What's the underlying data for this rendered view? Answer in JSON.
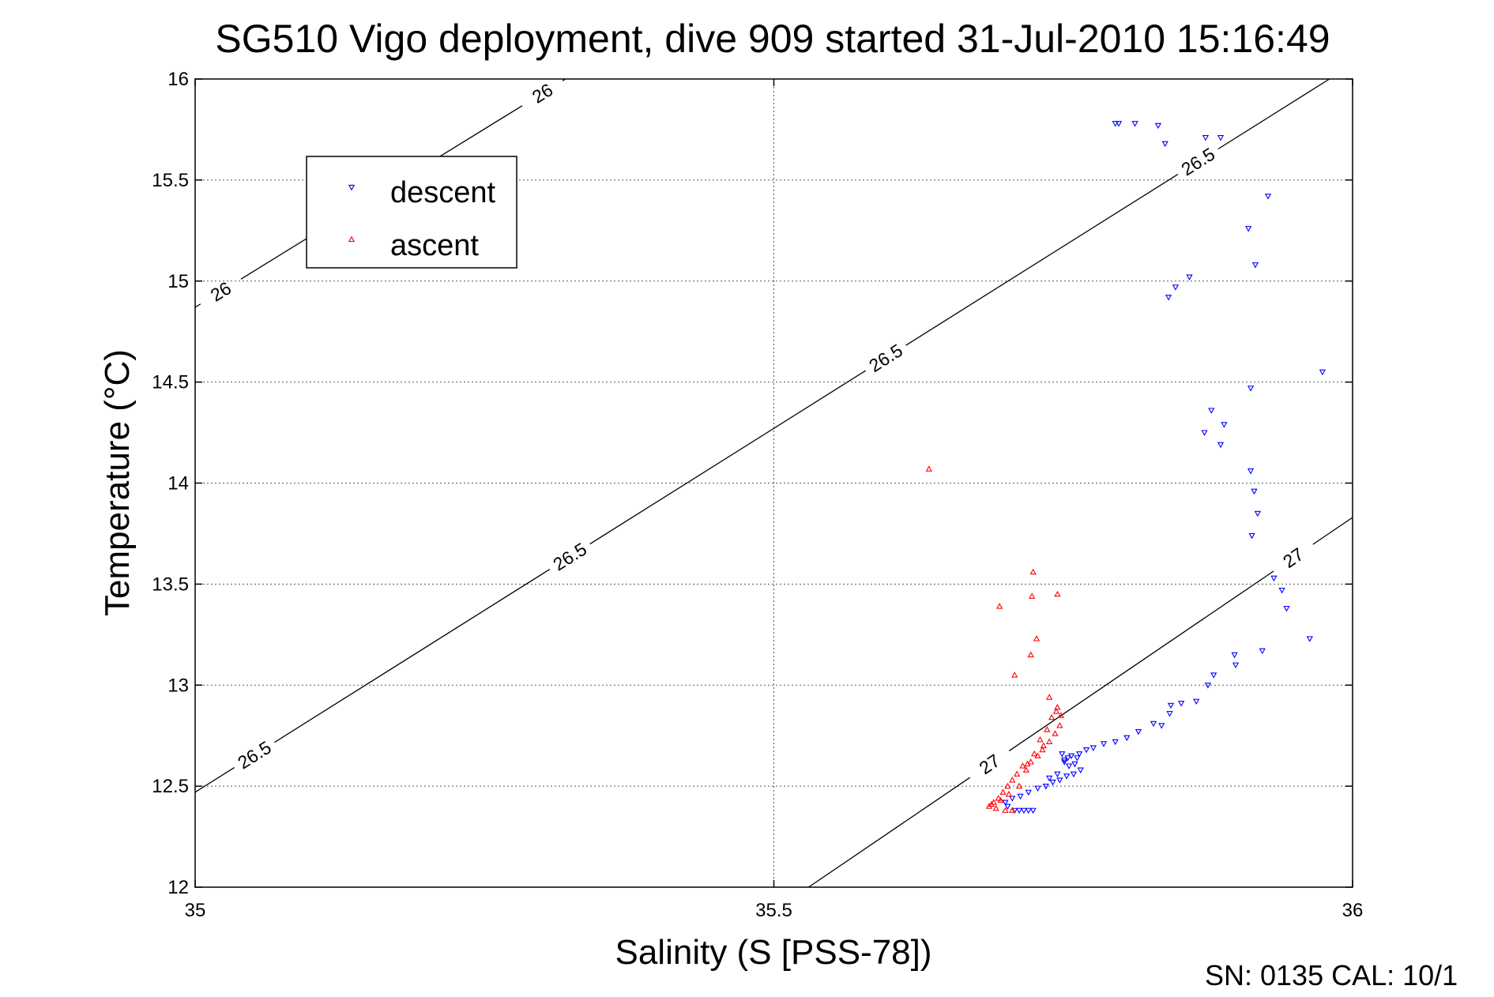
{
  "chart_data": {
    "type": "scatter",
    "title": "SG510 Vigo deployment, dive 909 started 31-Jul-2010 15:16:49",
    "xlabel": "Salinity (S [PSS-78])",
    "ylabel": "Temperature (°C)",
    "xlim": [
      35,
      36
    ],
    "ylim": [
      12,
      16
    ],
    "xticks": [
      "35",
      "35.5",
      "36"
    ],
    "yticks": [
      "12",
      "12.5",
      "13",
      "13.5",
      "14",
      "14.5",
      "15",
      "15.5",
      "16"
    ],
    "grid": true,
    "legend_position": "top-left",
    "footer_text": "SN: 0135  CAL: 10/1",
    "colors": {
      "descent": "#0000ff",
      "ascent": "#ff0000",
      "contour": "#000000"
    },
    "contours": [
      {
        "label": "26",
        "points": [
          [
            35.0,
            14.87
          ],
          [
            35.32,
            16.0
          ]
        ],
        "label_positions": [
          [
            35.023,
            14.94
          ],
          [
            35.3,
            15.93
          ]
        ]
      },
      {
        "label": "26.5",
        "points": [
          [
            35.0,
            12.47
          ],
          [
            35.98,
            16.0
          ]
        ],
        "label_positions": [
          [
            35.055,
            12.62
          ],
          [
            35.32,
            13.67
          ],
          [
            35.59,
            14.68
          ],
          [
            35.86,
            15.65
          ]
        ]
      },
      {
        "label": "27",
        "points": [
          [
            35.53,
            12.0
          ],
          [
            36.0,
            13.83
          ]
        ],
        "label_positions": [
          [
            35.685,
            12.62
          ],
          [
            35.95,
            13.62
          ]
        ]
      }
    ],
    "series": [
      {
        "name": "descent",
        "marker": "triangle-down",
        "points": [
          [
            35.795,
            15.78
          ],
          [
            35.798,
            15.78
          ],
          [
            35.812,
            15.78
          ],
          [
            35.832,
            15.77
          ],
          [
            35.838,
            15.68
          ],
          [
            35.873,
            15.71
          ],
          [
            35.886,
            15.71
          ],
          [
            35.927,
            15.42
          ],
          [
            35.91,
            15.26
          ],
          [
            35.916,
            15.08
          ],
          [
            35.859,
            15.02
          ],
          [
            35.847,
            14.97
          ],
          [
            35.841,
            14.92
          ],
          [
            35.974,
            14.55
          ],
          [
            35.912,
            14.47
          ],
          [
            35.878,
            14.36
          ],
          [
            35.889,
            14.29
          ],
          [
            35.872,
            14.25
          ],
          [
            35.886,
            14.19
          ],
          [
            35.912,
            14.06
          ],
          [
            35.918,
            13.85
          ],
          [
            35.915,
            13.96
          ],
          [
            35.913,
            13.74
          ],
          [
            35.932,
            13.53
          ],
          [
            35.943,
            13.38
          ],
          [
            35.939,
            13.47
          ],
          [
            35.963,
            13.23
          ],
          [
            35.922,
            13.17
          ],
          [
            35.898,
            13.15
          ],
          [
            35.899,
            13.1
          ],
          [
            35.88,
            13.05
          ],
          [
            35.875,
            13.0
          ],
          [
            35.865,
            12.92
          ],
          [
            35.852,
            12.91
          ],
          [
            35.843,
            12.9
          ],
          [
            35.842,
            12.86
          ],
          [
            35.835,
            12.8
          ],
          [
            35.828,
            12.81
          ],
          [
            35.815,
            12.77
          ],
          [
            35.805,
            12.74
          ],
          [
            35.795,
            12.72
          ],
          [
            35.785,
            12.71
          ],
          [
            35.776,
            12.69
          ],
          [
            35.77,
            12.68
          ],
          [
            35.764,
            12.66
          ],
          [
            35.757,
            12.65
          ],
          [
            35.751,
            12.63
          ],
          [
            35.76,
            12.61
          ],
          [
            35.765,
            12.58
          ],
          [
            35.759,
            12.56
          ],
          [
            35.753,
            12.55
          ],
          [
            35.747,
            12.53
          ],
          [
            35.741,
            12.52
          ],
          [
            35.735,
            12.5
          ],
          [
            35.728,
            12.49
          ],
          [
            35.72,
            12.47
          ],
          [
            35.713,
            12.45
          ],
          [
            35.706,
            12.44
          ],
          [
            35.751,
            12.62
          ],
          [
            35.749,
            12.66
          ],
          [
            35.754,
            12.64
          ],
          [
            35.762,
            12.64
          ],
          [
            35.7,
            12.42
          ],
          [
            35.702,
            12.4
          ],
          [
            35.708,
            12.38
          ],
          [
            35.712,
            12.38
          ],
          [
            35.716,
            12.38
          ],
          [
            35.72,
            12.38
          ],
          [
            35.724,
            12.38
          ],
          [
            35.755,
            12.6
          ],
          [
            35.745,
            12.56
          ],
          [
            35.738,
            12.54
          ]
        ]
      },
      {
        "name": "ascent",
        "marker": "triangle-up",
        "points": [
          [
            35.634,
            14.07
          ],
          [
            35.724,
            13.56
          ],
          [
            35.723,
            13.44
          ],
          [
            35.745,
            13.45
          ],
          [
            35.695,
            13.39
          ],
          [
            35.727,
            13.23
          ],
          [
            35.722,
            13.15
          ],
          [
            35.708,
            13.05
          ],
          [
            35.738,
            12.94
          ],
          [
            35.745,
            12.89
          ],
          [
            35.748,
            12.85
          ],
          [
            35.747,
            12.8
          ],
          [
            35.743,
            12.76
          ],
          [
            35.738,
            12.72
          ],
          [
            35.732,
            12.68
          ],
          [
            35.728,
            12.65
          ],
          [
            35.722,
            12.62
          ],
          [
            35.715,
            12.6
          ],
          [
            35.71,
            12.56
          ],
          [
            35.706,
            12.53
          ],
          [
            35.702,
            12.5
          ],
          [
            35.698,
            12.47
          ],
          [
            35.694,
            12.44
          ],
          [
            35.69,
            12.42
          ],
          [
            35.686,
            12.4
          ],
          [
            35.692,
            12.39
          ],
          [
            35.7,
            12.38
          ],
          [
            35.706,
            12.38
          ],
          [
            35.712,
            12.5
          ],
          [
            35.718,
            12.58
          ],
          [
            35.725,
            12.66
          ],
          [
            35.733,
            12.7
          ],
          [
            35.74,
            12.84
          ],
          [
            35.736,
            12.78
          ],
          [
            35.719,
            12.61
          ],
          [
            35.703,
            12.46
          ],
          [
            35.696,
            12.43
          ],
          [
            35.688,
            12.41
          ],
          [
            35.73,
            12.73
          ],
          [
            35.744,
            12.87
          ]
        ]
      }
    ]
  }
}
